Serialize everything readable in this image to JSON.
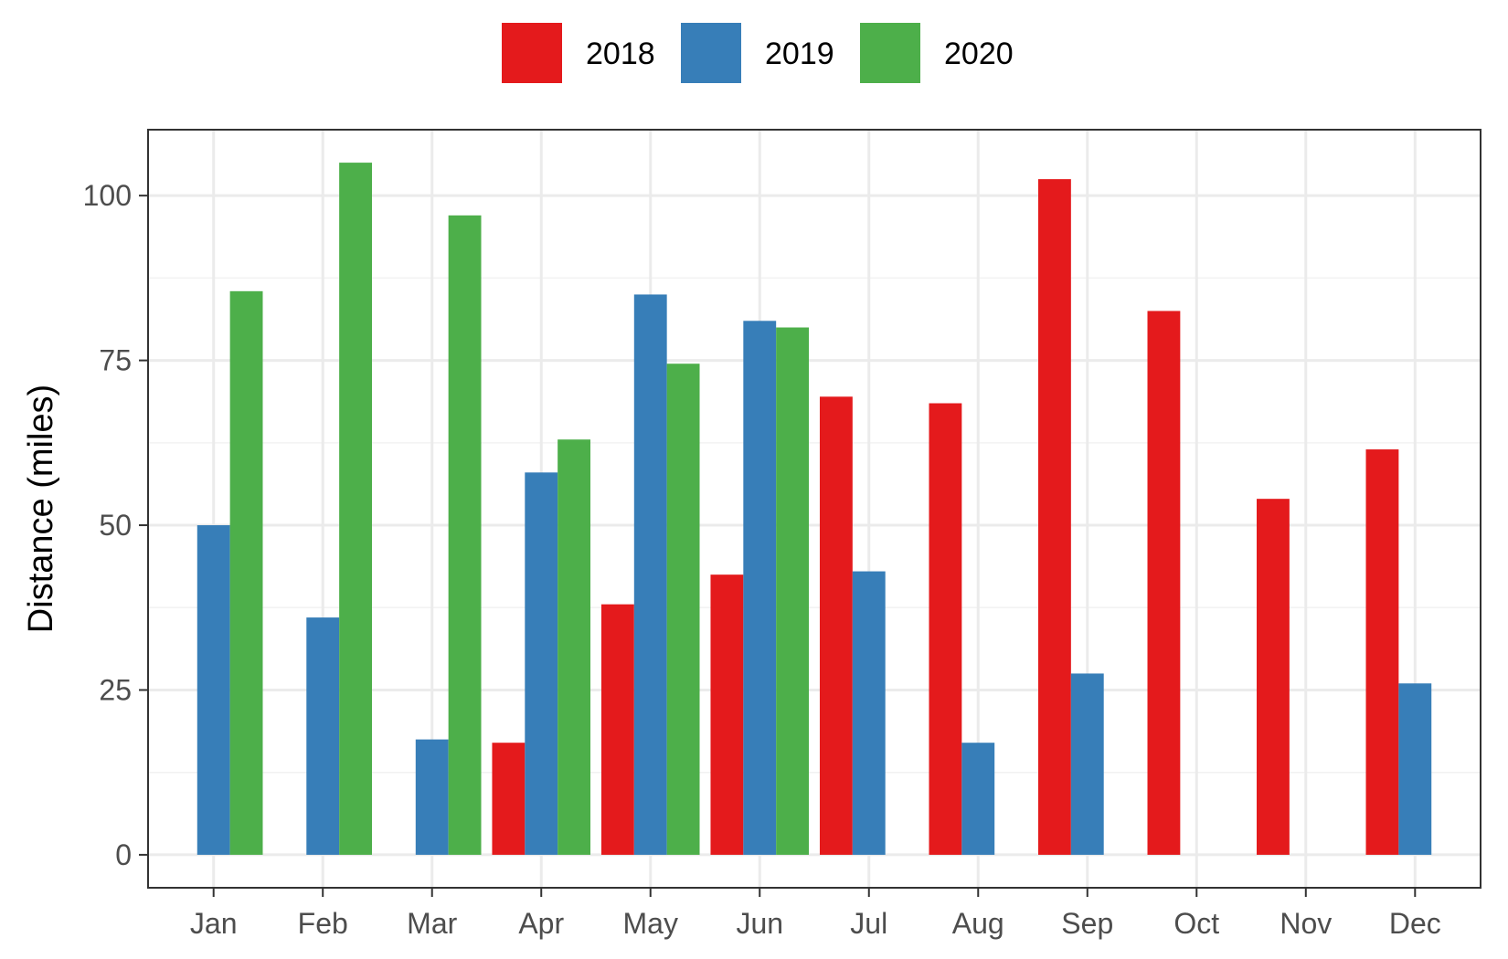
{
  "chart_data": {
    "type": "bar",
    "title": "",
    "xlabel": "",
    "ylabel": "Distance (miles)",
    "categories": [
      "Jan",
      "Feb",
      "Mar",
      "Apr",
      "May",
      "Jun",
      "Jul",
      "Aug",
      "Sep",
      "Oct",
      "Nov",
      "Dec"
    ],
    "series": [
      {
        "name": "2018",
        "color": "#E41A1C",
        "values": [
          null,
          null,
          null,
          17,
          38,
          42.5,
          69.5,
          68.5,
          102.5,
          82.5,
          54,
          61.5
        ]
      },
      {
        "name": "2019",
        "color": "#377EB8",
        "values": [
          50,
          36,
          17.5,
          58,
          85,
          81,
          43,
          17,
          27.5,
          null,
          null,
          26
        ]
      },
      {
        "name": "2020",
        "color": "#4DAF4A",
        "values": [
          85.5,
          105,
          97,
          63,
          74.5,
          80,
          null,
          null,
          null,
          null,
          null,
          null
        ]
      }
    ],
    "ylim": [
      -5,
      110
    ],
    "yticks": [
      0,
      25,
      50,
      75,
      100
    ],
    "grid": true,
    "legend_position": "top"
  }
}
